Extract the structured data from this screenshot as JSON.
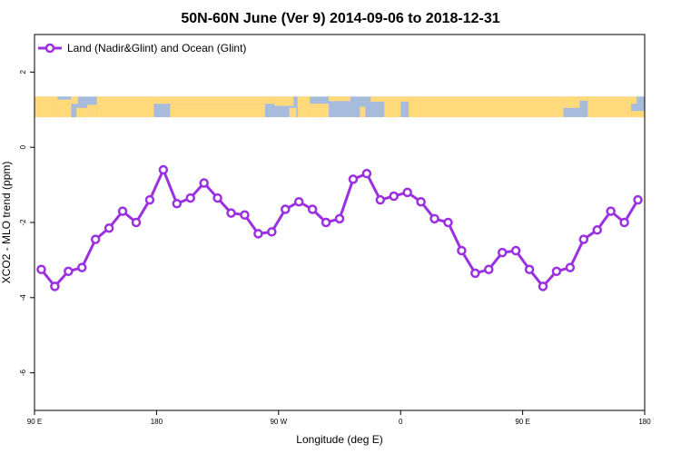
{
  "chart_data": {
    "type": "line",
    "title": "50N-60N June (Ver 9)   2014-09-06 to 2018-12-31",
    "xlabel": "Longitude (deg E)",
    "ylabel": "XCO2 - MLO trend (ppm)",
    "xlim": [
      90,
      540
    ],
    "ylim": [
      -7,
      3
    ],
    "x_ticks": [
      {
        "value": 90,
        "label": "90 E"
      },
      {
        "value": 180,
        "label": "180"
      },
      {
        "value": 270,
        "label": "90 W"
      },
      {
        "value": 360,
        "label": "0"
      },
      {
        "value": 450,
        "label": "90 E"
      },
      {
        "value": 540,
        "label": "180"
      }
    ],
    "y_ticks": [
      {
        "value": 2,
        "label": "2"
      },
      {
        "value": 0,
        "label": "0"
      },
      {
        "value": -2,
        "label": "-2"
      },
      {
        "value": -4,
        "label": "-4"
      },
      {
        "value": -6,
        "label": "-6"
      }
    ],
    "grid": false,
    "legend_position": "top-left",
    "map_strip": {
      "ocean_color": "#a7bcdd",
      "land_color": "#ffd97a",
      "y_range": [
        0.8,
        1.35
      ]
    },
    "series": [
      {
        "name": "Land (Nadir&Glint) and Ocean (Glint)",
        "color": "#9b30e0",
        "x": [
          95,
          105,
          115,
          125,
          135,
          145,
          155,
          165,
          175,
          185,
          195,
          205,
          215,
          225,
          235,
          245,
          255,
          265,
          275,
          285,
          295,
          305,
          315,
          325,
          335,
          345,
          355,
          365,
          375,
          385,
          395,
          405,
          415,
          425,
          435,
          445,
          455,
          465,
          475,
          485,
          495,
          505,
          515,
          525,
          535
        ],
        "y": [
          -3.25,
          -3.7,
          -3.3,
          -3.2,
          -2.45,
          -2.15,
          -1.7,
          -2.0,
          -1.4,
          -0.6,
          -1.5,
          -1.35,
          -0.95,
          -1.35,
          -1.75,
          -1.8,
          -2.3,
          -2.25,
          -1.65,
          -1.45,
          -1.65,
          -2.0,
          -1.9,
          -0.85,
          -0.7,
          -1.4,
          -1.3,
          -1.2,
          -1.45,
          -1.9,
          -2.0,
          -2.75,
          -3.35,
          -3.25,
          -2.8,
          -2.75,
          -3.25,
          -3.7,
          -3.3,
          -3.2,
          -2.45,
          -2.2,
          -1.7,
          -2.0,
          -1.4
        ]
      }
    ]
  }
}
